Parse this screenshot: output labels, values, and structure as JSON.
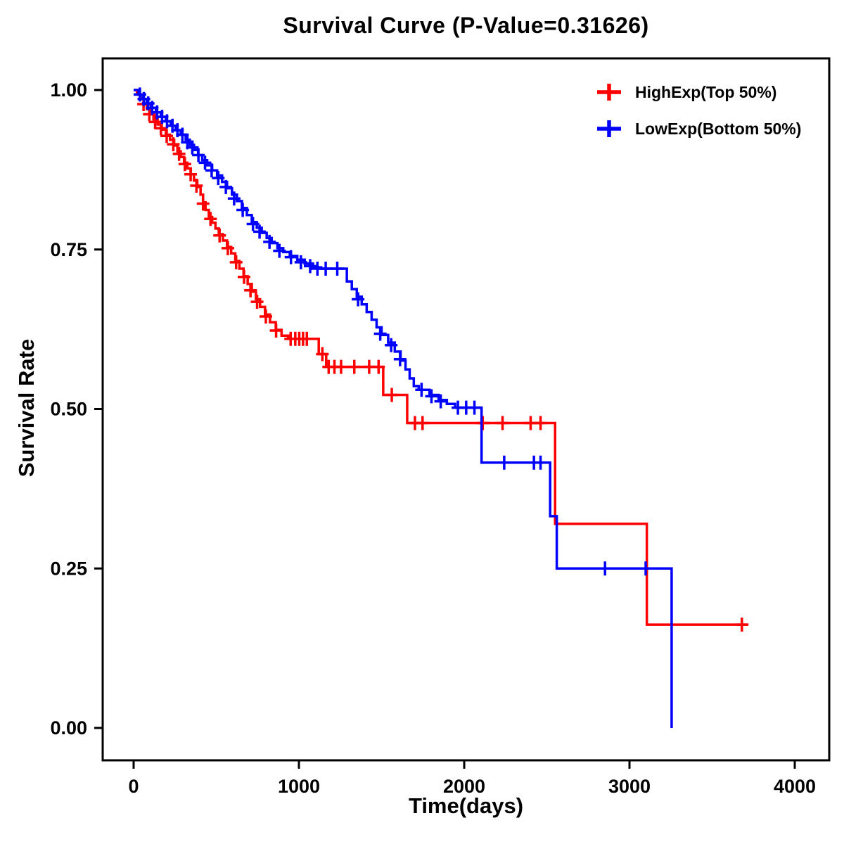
{
  "p_value": "0.31626",
  "chart_data": {
    "type": "line",
    "subtype": "kaplan-meier-step",
    "title": "Survival Curve (P-Value=0.31626)",
    "xlabel": "Time(days)",
    "ylabel": "Survival Rate",
    "xlim": [
      -150,
      4150
    ],
    "ylim": [
      -0.04,
      1.04
    ],
    "grid": false,
    "legend_position": "top-right",
    "xticks": [
      {
        "v": 0,
        "label": "0"
      },
      {
        "v": 1000,
        "label": "1000"
      },
      {
        "v": 2000,
        "label": "2000"
      },
      {
        "v": 3000,
        "label": "3000"
      },
      {
        "v": 4000,
        "label": "4000"
      }
    ],
    "yticks": [
      {
        "v": 0.0,
        "label": "0.00"
      },
      {
        "v": 0.25,
        "label": "0.25"
      },
      {
        "v": 0.5,
        "label": "0.50"
      },
      {
        "v": 0.75,
        "label": "0.75"
      },
      {
        "v": 1.0,
        "label": "1.00"
      }
    ],
    "series": [
      {
        "name": "HighExp(Top 50%)",
        "color": "#FF0000",
        "steps": [
          [
            0,
            1.0
          ],
          [
            20,
            0.993
          ],
          [
            40,
            0.986
          ],
          [
            60,
            0.978
          ],
          [
            80,
            0.97
          ],
          [
            100,
            0.962
          ],
          [
            120,
            0.954
          ],
          [
            145,
            0.946
          ],
          [
            170,
            0.938
          ],
          [
            195,
            0.93
          ],
          [
            220,
            0.922
          ],
          [
            245,
            0.913
          ],
          [
            265,
            0.904
          ],
          [
            285,
            0.895
          ],
          [
            305,
            0.886
          ],
          [
            325,
            0.877
          ],
          [
            345,
            0.868
          ],
          [
            365,
            0.858
          ],
          [
            385,
            0.848
          ],
          [
            405,
            0.836
          ],
          [
            420,
            0.824
          ],
          [
            435,
            0.812
          ],
          [
            455,
            0.801
          ],
          [
            475,
            0.792
          ],
          [
            495,
            0.783
          ],
          [
            515,
            0.774
          ],
          [
            540,
            0.764
          ],
          [
            565,
            0.754
          ],
          [
            590,
            0.744
          ],
          [
            615,
            0.732
          ],
          [
            640,
            0.72
          ],
          [
            665,
            0.708
          ],
          [
            690,
            0.696
          ],
          [
            715,
            0.684
          ],
          [
            740,
            0.672
          ],
          [
            765,
            0.66
          ],
          [
            795,
            0.648
          ],
          [
            825,
            0.636
          ],
          [
            860,
            0.624
          ],
          [
            895,
            0.615
          ],
          [
            935,
            0.61
          ],
          [
            1120,
            0.586
          ],
          [
            1165,
            0.566
          ],
          [
            1510,
            0.522
          ],
          [
            1655,
            0.478
          ],
          [
            2550,
            0.32
          ],
          [
            3105,
            0.162
          ],
          [
            3720,
            0.162
          ]
        ],
        "censors": [
          [
            60,
            0.978
          ],
          [
            95,
            0.962
          ],
          [
            130,
            0.95
          ],
          [
            165,
            0.94
          ],
          [
            200,
            0.928
          ],
          [
            240,
            0.915
          ],
          [
            275,
            0.9
          ],
          [
            310,
            0.884
          ],
          [
            345,
            0.868
          ],
          [
            380,
            0.85
          ],
          [
            420,
            0.822
          ],
          [
            465,
            0.798
          ],
          [
            520,
            0.772
          ],
          [
            570,
            0.752
          ],
          [
            620,
            0.73
          ],
          [
            668,
            0.707
          ],
          [
            707,
            0.686
          ],
          [
            747,
            0.668
          ],
          [
            800,
            0.645
          ],
          [
            862,
            0.623
          ],
          [
            950,
            0.61
          ],
          [
            978,
            0.61
          ],
          [
            1002,
            0.61
          ],
          [
            1025,
            0.61
          ],
          [
            1048,
            0.61
          ],
          [
            1142,
            0.586
          ],
          [
            1180,
            0.566
          ],
          [
            1215,
            0.566
          ],
          [
            1255,
            0.566
          ],
          [
            1335,
            0.566
          ],
          [
            1425,
            0.566
          ],
          [
            1482,
            0.566
          ],
          [
            1562,
            0.522
          ],
          [
            1702,
            0.478
          ],
          [
            1748,
            0.478
          ],
          [
            2112,
            0.478
          ],
          [
            2232,
            0.478
          ],
          [
            2402,
            0.478
          ],
          [
            2462,
            0.478
          ],
          [
            3680,
            0.162
          ]
        ]
      },
      {
        "name": "LowExp(Bottom 50%)",
        "color": "#0000FF",
        "steps": [
          [
            0,
            1.0
          ],
          [
            30,
            0.993
          ],
          [
            55,
            0.986
          ],
          [
            80,
            0.979
          ],
          [
            105,
            0.972
          ],
          [
            135,
            0.965
          ],
          [
            165,
            0.958
          ],
          [
            195,
            0.951
          ],
          [
            225,
            0.944
          ],
          [
            255,
            0.937
          ],
          [
            285,
            0.93
          ],
          [
            315,
            0.922
          ],
          [
            340,
            0.914
          ],
          [
            365,
            0.906
          ],
          [
            390,
            0.898
          ],
          [
            415,
            0.89
          ],
          [
            445,
            0.882
          ],
          [
            475,
            0.874
          ],
          [
            505,
            0.866
          ],
          [
            535,
            0.856
          ],
          [
            565,
            0.846
          ],
          [
            595,
            0.836
          ],
          [
            625,
            0.826
          ],
          [
            655,
            0.815
          ],
          [
            685,
            0.804
          ],
          [
            715,
            0.793
          ],
          [
            745,
            0.784
          ],
          [
            775,
            0.776
          ],
          [
            805,
            0.768
          ],
          [
            835,
            0.76
          ],
          [
            870,
            0.752
          ],
          [
            905,
            0.746
          ],
          [
            945,
            0.74
          ],
          [
            990,
            0.734
          ],
          [
            1035,
            0.728
          ],
          [
            1085,
            0.722
          ],
          [
            1135,
            0.72
          ],
          [
            1290,
            0.7
          ],
          [
            1320,
            0.688
          ],
          [
            1350,
            0.676
          ],
          [
            1380,
            0.664
          ],
          [
            1410,
            0.652
          ],
          [
            1440,
            0.64
          ],
          [
            1470,
            0.628
          ],
          [
            1500,
            0.616
          ],
          [
            1540,
            0.604
          ],
          [
            1580,
            0.59
          ],
          [
            1615,
            0.576
          ],
          [
            1645,
            0.562
          ],
          [
            1670,
            0.548
          ],
          [
            1695,
            0.536
          ],
          [
            1725,
            0.53
          ],
          [
            1790,
            0.522
          ],
          [
            1845,
            0.514
          ],
          [
            1895,
            0.508
          ],
          [
            1945,
            0.502
          ],
          [
            2105,
            0.416
          ],
          [
            2520,
            0.332
          ],
          [
            2560,
            0.25
          ],
          [
            3255,
            0.0
          ]
        ],
        "censors": [
          [
            38,
            0.993
          ],
          [
            62,
            0.986
          ],
          [
            88,
            0.979
          ],
          [
            112,
            0.972
          ],
          [
            142,
            0.965
          ],
          [
            172,
            0.958
          ],
          [
            202,
            0.951
          ],
          [
            235,
            0.944
          ],
          [
            265,
            0.937
          ],
          [
            295,
            0.93
          ],
          [
            325,
            0.918
          ],
          [
            355,
            0.91
          ],
          [
            392,
            0.898
          ],
          [
            432,
            0.886
          ],
          [
            472,
            0.874
          ],
          [
            512,
            0.862
          ],
          [
            558,
            0.848
          ],
          [
            608,
            0.83
          ],
          [
            660,
            0.812
          ],
          [
            722,
            0.79
          ],
          [
            762,
            0.778
          ],
          [
            822,
            0.762
          ],
          [
            882,
            0.748
          ],
          [
            952,
            0.738
          ],
          [
            1012,
            0.73
          ],
          [
            1068,
            0.724
          ],
          [
            1112,
            0.72
          ],
          [
            1162,
            0.72
          ],
          [
            1232,
            0.72
          ],
          [
            1358,
            0.672
          ],
          [
            1492,
            0.618
          ],
          [
            1558,
            0.6
          ],
          [
            1612,
            0.578
          ],
          [
            1742,
            0.53
          ],
          [
            1802,
            0.52
          ],
          [
            1858,
            0.512
          ],
          [
            1962,
            0.502
          ],
          [
            2012,
            0.502
          ],
          [
            2062,
            0.502
          ],
          [
            2242,
            0.416
          ],
          [
            2422,
            0.416
          ],
          [
            2462,
            0.416
          ],
          [
            2852,
            0.25
          ],
          [
            3098,
            0.25
          ]
        ]
      }
    ]
  }
}
